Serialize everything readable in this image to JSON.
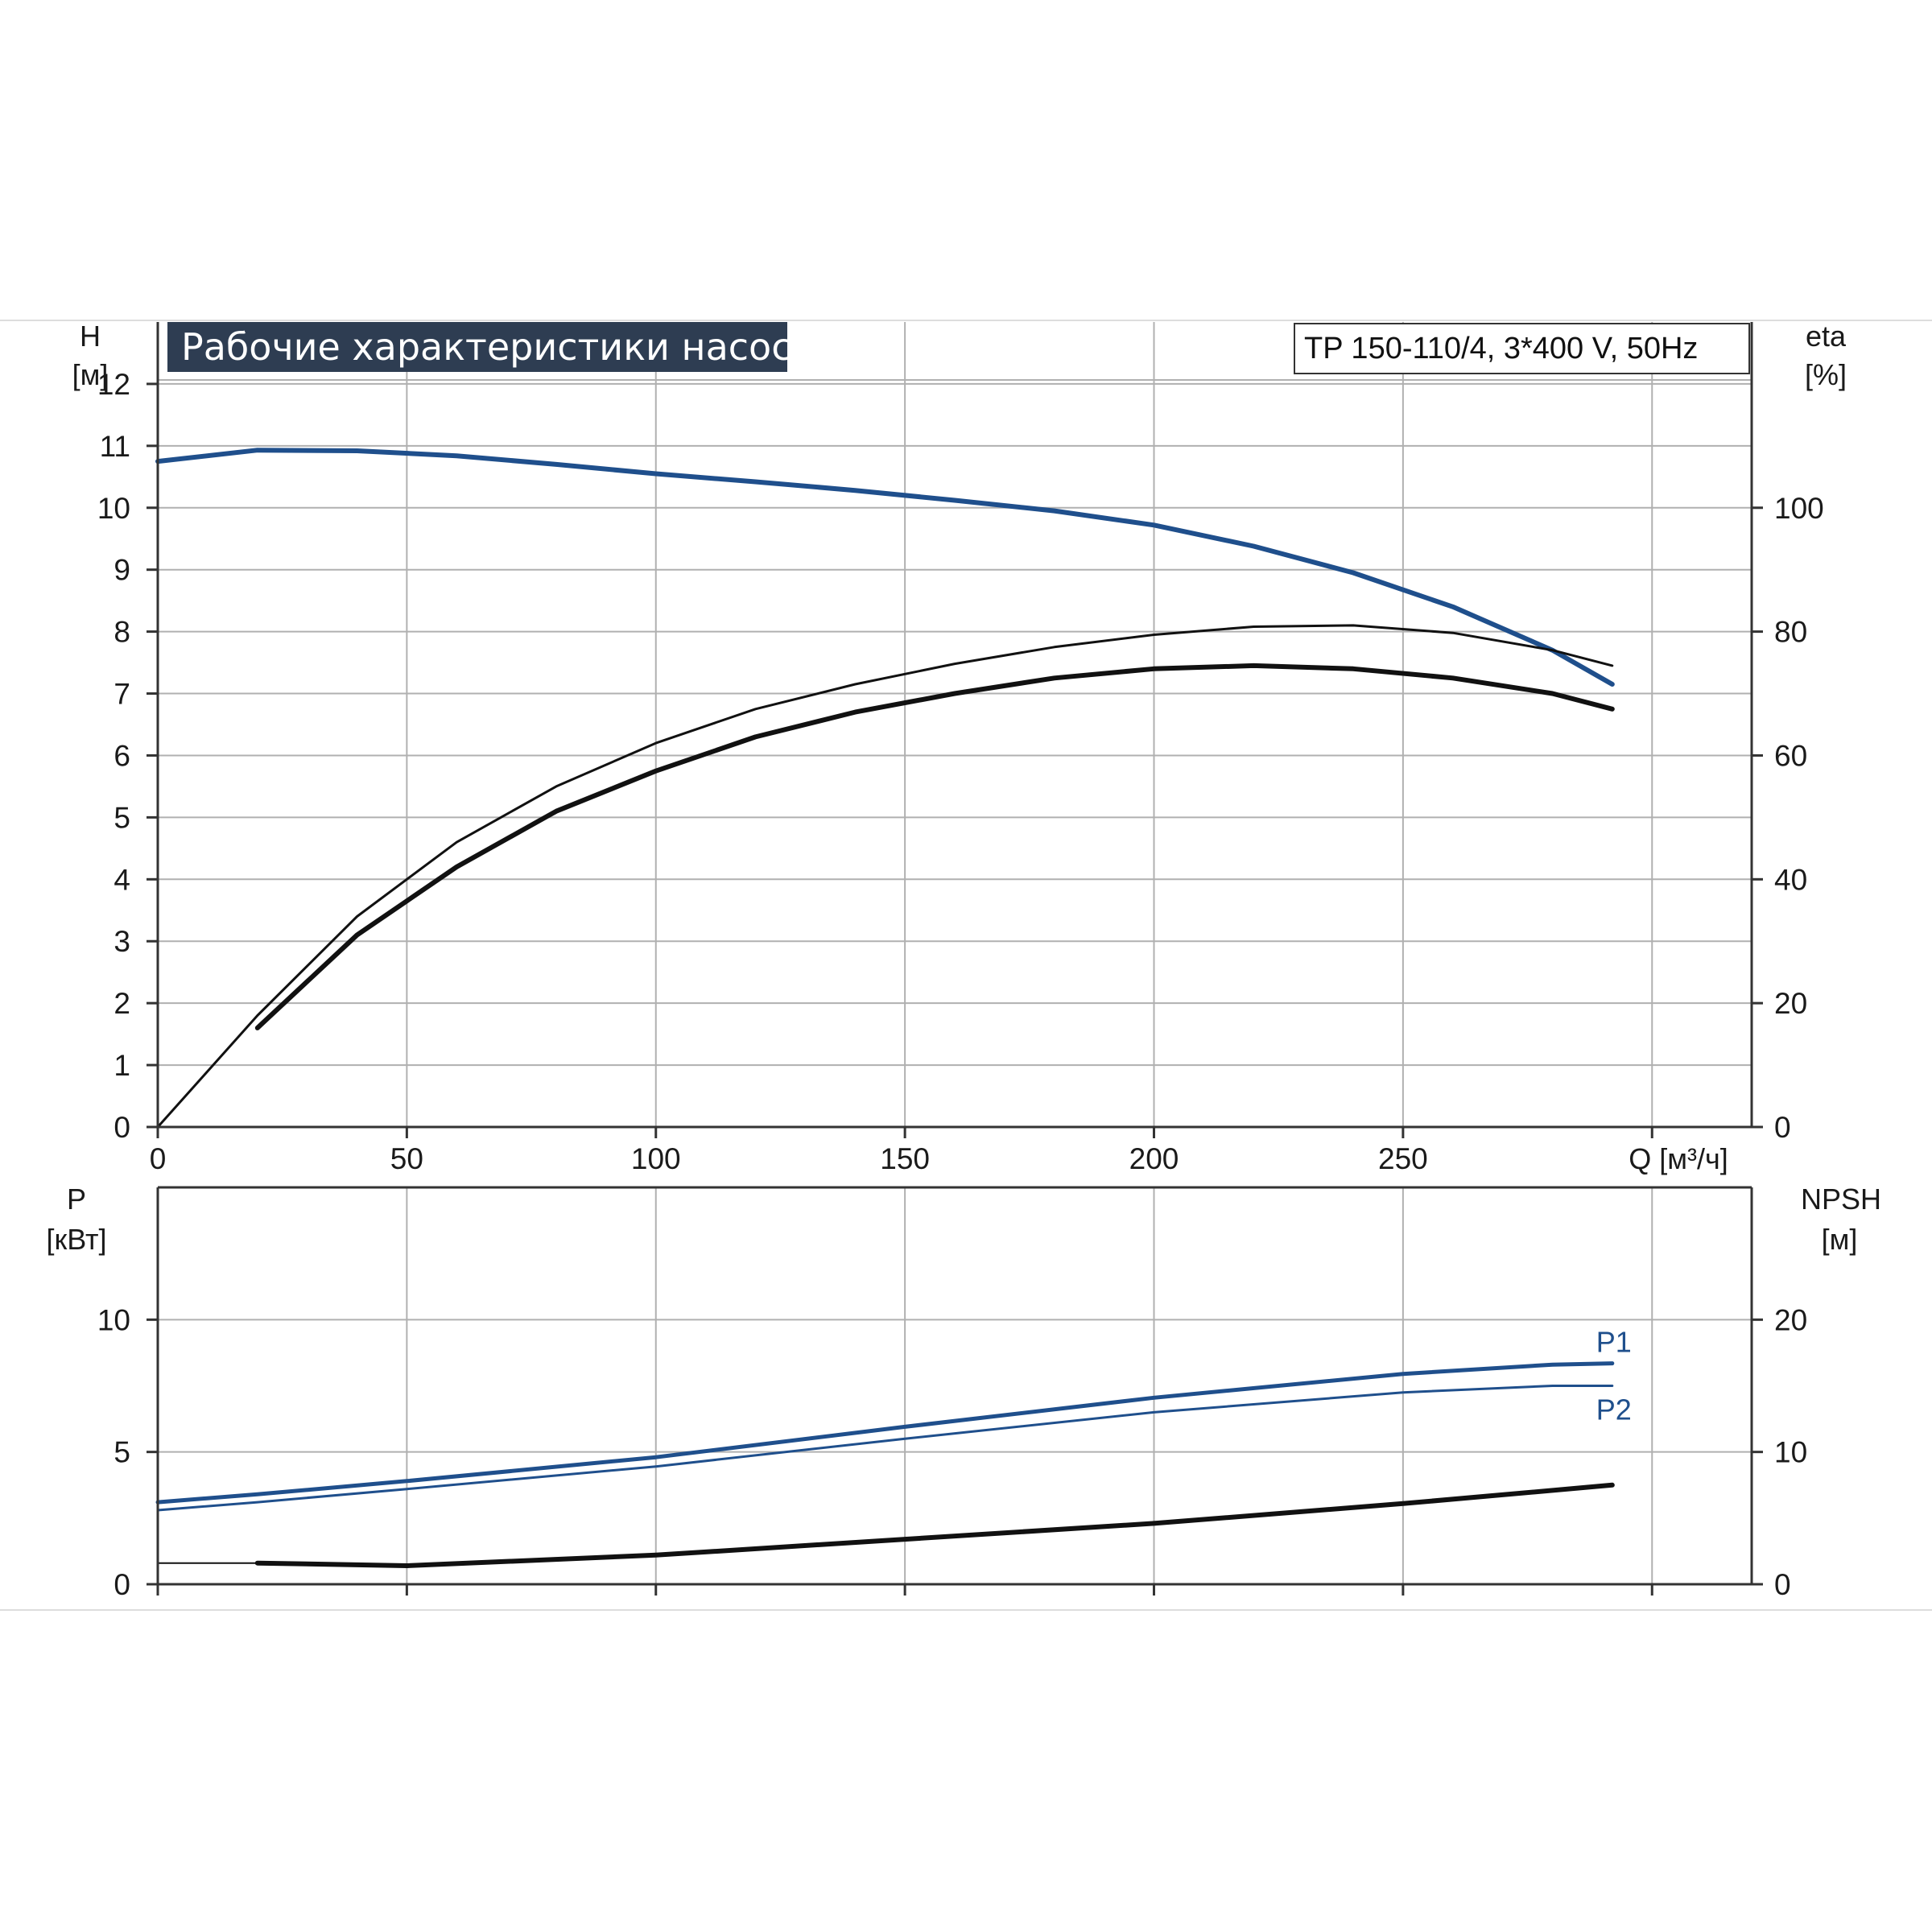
{
  "chart_title": "Рабочие характеристики насоса",
  "pump_model": "TP 150-110/4, 3*400 V, 50Hz",
  "colors": {
    "blue": "#1f4f8c",
    "black": "#111111",
    "grid": "#b0b0b0",
    "title_bg": "#2e3d52"
  },
  "chart_data": [
    {
      "id": "upper",
      "type": "line",
      "x_label": "Q [м³/ч]",
      "xlim": [
        0,
        320
      ],
      "x_ticks": [
        0,
        50,
        100,
        150,
        200,
        250
      ],
      "left_axis": {
        "label_line1": "H",
        "label_line2": "[м]",
        "ylim": [
          0,
          13
        ],
        "ticks": [
          0,
          1,
          2,
          3,
          4,
          5,
          6,
          7,
          8,
          9,
          10,
          11,
          12
        ]
      },
      "right_axis": {
        "label_line1": "eta",
        "label_line2": "[%]",
        "ylim": [
          0,
          130
        ],
        "ticks": [
          0,
          20,
          40,
          60,
          80,
          100
        ]
      },
      "series": [
        {
          "axis": "left",
          "color": "blue",
          "width": 6,
          "x": [
            0,
            20,
            40,
            60,
            80,
            100,
            120,
            140,
            160,
            180,
            200,
            220,
            240,
            260,
            280,
            292
          ],
          "y": [
            10.75,
            10.93,
            10.92,
            10.84,
            10.7,
            10.55,
            10.42,
            10.28,
            10.12,
            9.95,
            9.72,
            9.38,
            8.95,
            8.4,
            7.7,
            7.15
          ]
        },
        {
          "axis": "right",
          "color": "black",
          "width": 3,
          "x": [
            0,
            20,
            40,
            60,
            80,
            100,
            120,
            140,
            160,
            180,
            200,
            220,
            240,
            260,
            280,
            292
          ],
          "y": [
            0,
            18,
            34,
            46,
            55,
            62,
            67.5,
            71.5,
            74.8,
            77.5,
            79.5,
            80.8,
            81,
            79.8,
            77,
            74.5
          ]
        },
        {
          "axis": "right",
          "color": "black",
          "width": 6,
          "x": [
            20,
            40,
            60,
            80,
            100,
            120,
            140,
            160,
            180,
            200,
            220,
            240,
            260,
            280,
            292
          ],
          "y": [
            16,
            31,
            42,
            51,
            57.5,
            63,
            67,
            70,
            72.5,
            74,
            74.5,
            74,
            72.5,
            70,
            67.5
          ]
        },
        {
          "axis": "right",
          "color": "black",
          "width": 2,
          "x": [
            0,
            10,
            20
          ],
          "y": [
            0,
            9,
            18
          ]
        }
      ]
    },
    {
      "id": "lower",
      "type": "line",
      "xlim": [
        0,
        320
      ],
      "x_ticks": [
        0,
        50,
        100,
        150,
        200,
        250
      ],
      "left_axis": {
        "label_line1": "P",
        "label_line2": "[кВт]",
        "ylim": [
          0,
          15
        ],
        "ticks": [
          0,
          5,
          10
        ]
      },
      "right_axis": {
        "label_line1": "NPSH",
        "label_line2": "[м]",
        "ylim": [
          0,
          30
        ],
        "ticks": [
          0,
          10,
          20
        ]
      },
      "series": [
        {
          "name": "P1",
          "axis": "left",
          "color": "blue",
          "width": 5,
          "x": [
            0,
            20,
            50,
            100,
            150,
            200,
            250,
            280,
            292
          ],
          "y": [
            3.1,
            3.4,
            3.9,
            4.8,
            5.95,
            7.05,
            7.95,
            8.3,
            8.35
          ]
        },
        {
          "name": "P2",
          "axis": "left",
          "color": "blue",
          "width": 3,
          "x": [
            0,
            20,
            50,
            100,
            150,
            200,
            250,
            280,
            292
          ],
          "y": [
            2.8,
            3.1,
            3.6,
            4.45,
            5.5,
            6.5,
            7.25,
            7.5,
            7.5
          ]
        },
        {
          "axis": "right",
          "color": "black",
          "width": 6,
          "x": [
            20,
            50,
            100,
            150,
            200,
            250,
            292
          ],
          "y": [
            1.6,
            1.4,
            2.2,
            3.4,
            4.6,
            6.1,
            7.5
          ]
        },
        {
          "axis": "right",
          "color": "black",
          "width": 2,
          "x": [
            0,
            20
          ],
          "y": [
            1.6,
            1.6
          ]
        }
      ]
    }
  ]
}
